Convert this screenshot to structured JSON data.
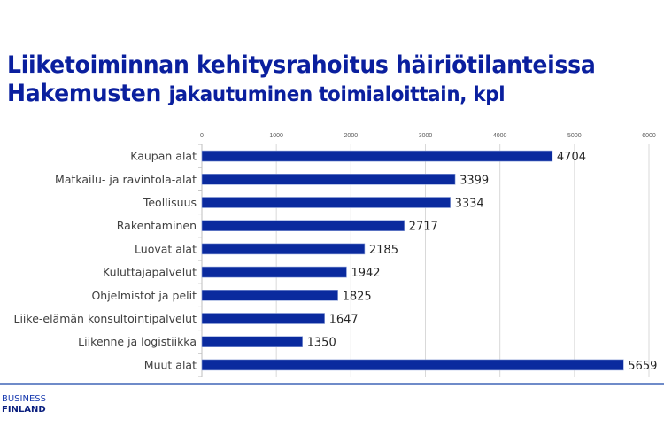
{
  "title_line1": "Liiketoiminnan kehitysrahoitus häiriötilanteissa",
  "title_line2_main": "Hakemusten",
  "title_line2_sub": "jakautuminen toimialoittain, kpl",
  "logo": {
    "line1": "BUSINESS",
    "line2": "FINLAND"
  },
  "colors": {
    "bar": "#0a2a9e",
    "title": "#0a1f9e",
    "grid": "#d9d9d9",
    "rule": "#6f8bc9"
  },
  "chart_data": {
    "type": "bar",
    "orientation": "horizontal",
    "title": "Liiketoiminnan kehitysrahoitus häiriötilanteissa – Hakemusten jakautuminen toimialoittain, kpl",
    "categories": [
      "Kaupan alat",
      "Matkailu- ja ravintola-alat",
      "Teollisuus",
      "Rakentaminen",
      "Luovat alat",
      "Kuluttajapalvelut",
      "Ohjelmistot ja pelit",
      "Liike-elämän konsultointipalvelut",
      "Liikenne ja logistiikka",
      "Muut alat"
    ],
    "values": [
      4704,
      3399,
      3334,
      2717,
      2185,
      1942,
      1825,
      1647,
      1350,
      5659
    ],
    "xlim": [
      0,
      6000
    ],
    "xticks": [
      "0",
      "1000",
      "2000",
      "3000",
      "4000",
      "5000",
      "6000"
    ],
    "xtick_values": [
      0,
      1000,
      2000,
      3000,
      4000,
      5000,
      6000
    ],
    "xaxis_position": "top",
    "grid": true,
    "data_labels": true
  }
}
